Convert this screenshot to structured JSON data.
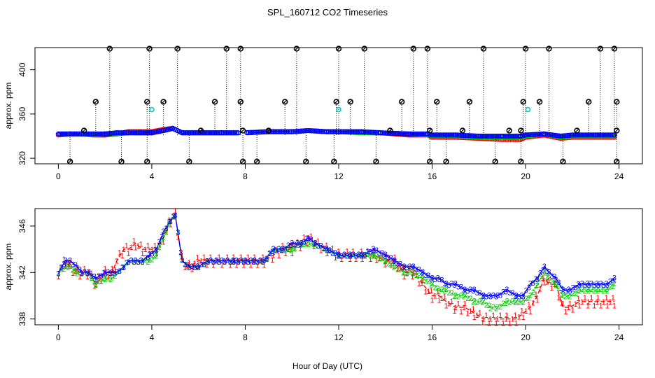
{
  "title": "SPL_160712  CO2 Timeseries",
  "xlabel": "Hour of Day (UTC)",
  "colors": {
    "series1": "#ff0000",
    "series2": "#00cd00",
    "series3": "#0000ff",
    "outlier": "#000000",
    "mean_outlier": "#00cccc"
  },
  "chart_data": [
    {
      "type": "scatter",
      "panel": "top",
      "ylabel": "approx. ppm",
      "xlim": [
        -1,
        25
      ],
      "ylim": [
        315,
        420
      ],
      "xticks": [
        0,
        4,
        8,
        12,
        16,
        20,
        24
      ],
      "yticks": [
        320,
        360,
        400
      ],
      "grid": false,
      "base_series": [
        {
          "name": "1",
          "x": [
            0,
            0.5,
            1,
            1.5,
            2,
            2.5,
            3,
            3.5,
            4,
            4.5,
            4.9,
            5.3,
            6,
            7,
            8,
            9,
            10,
            10.7,
            11.5,
            12,
            13,
            13.8,
            15,
            15.8,
            16,
            17,
            18,
            19,
            19.8,
            20,
            20.8,
            21.5,
            22,
            23,
            23.8
          ],
          "y": [
            341,
            342,
            342,
            341,
            341,
            342,
            344,
            344,
            344,
            346,
            347,
            343,
            343,
            343,
            343,
            344,
            344,
            345,
            344,
            344,
            343,
            343,
            341,
            341,
            339,
            339,
            338,
            337,
            337,
            339,
            341,
            338,
            339,
            339,
            339
          ]
        },
        {
          "name": "2",
          "x": [
            0,
            0.5,
            1,
            1.5,
            2,
            2.5,
            3,
            3.5,
            4,
            4.5,
            4.9,
            5.3,
            6,
            7,
            8,
            9,
            10,
            10.7,
            11.5,
            12,
            13,
            13.8,
            15,
            15.8,
            16,
            17,
            18,
            19,
            19.8,
            20,
            20.8,
            21.5,
            22,
            23,
            23.8
          ],
          "y": [
            342,
            342,
            342,
            341,
            342,
            342,
            343,
            343,
            343,
            345,
            347,
            343,
            343,
            343,
            343,
            344,
            344,
            345,
            344,
            344,
            343,
            343,
            342,
            341,
            340,
            340,
            339,
            339,
            339,
            340,
            342,
            339,
            340,
            340,
            340
          ]
        },
        {
          "name": "3",
          "x": [
            0,
            0.5,
            1,
            1.5,
            2,
            2.5,
            3,
            3.5,
            4,
            4.5,
            4.9,
            5.3,
            6,
            7,
            8,
            9,
            10,
            10.7,
            11.5,
            12,
            13,
            13.8,
            15,
            15.8,
            16,
            17,
            18,
            19,
            19.8,
            20,
            20.8,
            21.5,
            22,
            23,
            23.8
          ],
          "y": [
            342,
            342,
            342,
            342,
            342,
            343,
            343,
            343,
            343,
            345,
            347,
            343,
            343,
            343,
            343,
            344,
            344,
            345,
            344,
            344,
            344,
            343,
            342,
            342,
            341,
            341,
            340,
            340,
            340,
            341,
            342,
            340,
            341,
            341,
            341
          ]
        }
      ],
      "outliers_high": {
        "x": [
          2.2,
          3.9,
          5.1,
          7.2,
          7.8,
          10.2,
          12.0,
          13.1,
          15.2,
          15.8,
          18.2,
          20.0,
          21.0,
          23.2,
          23.8
        ],
        "y": [
          419,
          419,
          419,
          419,
          419,
          419,
          419,
          419,
          419,
          419,
          419,
          419,
          419,
          419,
          419
        ]
      },
      "outliers_mid": {
        "x": [
          1.6,
          3.8,
          4.5,
          6.7,
          7.8,
          9.7,
          11.9,
          12.5,
          14.7,
          16.2,
          17.6,
          19.9,
          20.6,
          22.7,
          23.9
        ],
        "y": [
          371,
          371,
          371,
          371,
          371,
          371,
          371,
          371,
          371,
          371,
          371,
          371,
          371,
          371,
          371
        ]
      },
      "outliers_low": {
        "x": [
          0.5,
          2.7,
          3.8,
          5.6,
          7.9,
          8.5,
          10.6,
          11.8,
          13.6,
          15.9,
          16.6,
          18.7,
          19.8,
          21.6,
          23.9
        ],
        "y": [
          317,
          317,
          317,
          317,
          317,
          317,
          317,
          317,
          317,
          317,
          317,
          317,
          317,
          317,
          317
        ]
      },
      "outliers_small": {
        "x": [
          1.1,
          6.1,
          7.9,
          9.0,
          14.2,
          15.9,
          17.3,
          19.3,
          19.8,
          22.2,
          23.9
        ],
        "y": [
          345,
          345,
          345,
          345,
          345,
          345,
          345,
          345,
          345,
          345,
          345
        ]
      },
      "mean_outliers": {
        "x": [
          4.0,
          12.0,
          20.1
        ],
        "y": [
          364,
          364,
          364
        ]
      }
    },
    {
      "type": "line",
      "panel": "bottom",
      "ylabel": "approx. ppm",
      "xlim": [
        -1,
        25
      ],
      "ylim": [
        337.5,
        347.5
      ],
      "xticks": [
        0,
        4,
        8,
        12,
        16,
        20,
        24
      ],
      "yticks": [
        338,
        342,
        346
      ],
      "grid": false,
      "marker_labels": [
        "1",
        "2",
        "3"
      ],
      "series": [
        {
          "name": "1",
          "x": [
            0,
            0.3,
            0.5,
            0.8,
            1,
            1.3,
            1.6,
            2,
            2.3,
            2.5,
            2.8,
            3,
            3.3,
            3.6,
            3.9,
            4.2,
            4.5,
            4.8,
            5,
            5.3,
            5.6,
            6,
            6.4,
            7,
            7.5,
            7.7,
            8,
            8.4,
            8.8,
            9.2,
            9.6,
            10,
            10.4,
            10.7,
            11,
            11.5,
            12,
            12.5,
            13,
            13.5,
            14,
            14.4,
            14.8,
            15.2,
            15.6,
            16,
            16.3,
            16.6,
            17,
            17.4,
            17.8,
            18.2,
            18.5,
            18.8,
            19.2,
            19.6,
            19.9,
            20.2,
            20.5,
            20.8,
            21,
            21.3,
            21.6,
            21.9,
            22.3,
            22.7,
            23.1,
            23.5,
            23.8
          ],
          "y": [
            342,
            343,
            342.5,
            342,
            342,
            342,
            341,
            342,
            342,
            343,
            344,
            344,
            344.5,
            344,
            344,
            344,
            345,
            346.5,
            347,
            343,
            342.5,
            343,
            343,
            343,
            343,
            343,
            343,
            343,
            343,
            343.5,
            344,
            344,
            344.5,
            345,
            344.5,
            344,
            343.5,
            343.5,
            343.5,
            343.5,
            343,
            343,
            342,
            342,
            341,
            340,
            340,
            339.5,
            339,
            339,
            338.5,
            338,
            338,
            338,
            338,
            338,
            338.5,
            339,
            340,
            341.5,
            341,
            341,
            339,
            339,
            339.5,
            339.5,
            339.5,
            339.5,
            339.5
          ]
        },
        {
          "name": "2",
          "x": [
            0,
            0.3,
            0.5,
            0.8,
            1,
            1.3,
            1.6,
            2,
            2.3,
            2.5,
            2.8,
            3,
            3.3,
            3.6,
            3.9,
            4.2,
            4.5,
            4.8,
            5,
            5.3,
            5.6,
            6,
            6.4,
            7,
            7.5,
            7.7,
            8,
            8.4,
            8.8,
            9.2,
            9.6,
            10,
            10.4,
            10.7,
            11,
            11.5,
            12,
            12.5,
            13,
            13.5,
            14,
            14.4,
            14.8,
            15.2,
            15.6,
            16,
            16.3,
            16.6,
            17,
            17.4,
            17.8,
            18.2,
            18.5,
            18.8,
            19.2,
            19.6,
            19.9,
            20.2,
            20.5,
            20.8,
            21,
            21.3,
            21.6,
            21.9,
            22.3,
            22.7,
            23.1,
            23.5,
            23.8
          ],
          "y": [
            342,
            342.5,
            342.5,
            342,
            342,
            342,
            341,
            341.5,
            341.5,
            342,
            342.5,
            343,
            343,
            343,
            343,
            343.5,
            345,
            346.5,
            347,
            343,
            342.5,
            342.5,
            343,
            343,
            343,
            343,
            343,
            343,
            343,
            344,
            344,
            344,
            344.5,
            344.5,
            344.5,
            344,
            343.5,
            343.5,
            343.5,
            343.5,
            343,
            342.5,
            342,
            342,
            341.5,
            341,
            340.5,
            340.5,
            340,
            340,
            339.5,
            339.5,
            339,
            339,
            339.5,
            339.5,
            339.5,
            340,
            341,
            342,
            341.5,
            341,
            340,
            340,
            340.5,
            340.5,
            340.5,
            340.5,
            341
          ]
        },
        {
          "name": "3",
          "x": [
            0,
            0.3,
            0.5,
            0.8,
            1,
            1.3,
            1.6,
            2,
            2.3,
            2.5,
            2.8,
            3,
            3.3,
            3.6,
            3.9,
            4.2,
            4.5,
            4.8,
            5,
            5.3,
            5.6,
            6,
            6.4,
            7,
            7.5,
            7.7,
            8,
            8.4,
            8.8,
            9.2,
            9.6,
            10,
            10.4,
            10.7,
            11,
            11.5,
            12,
            12.5,
            13,
            13.5,
            14,
            14.4,
            14.8,
            15.2,
            15.6,
            16,
            16.3,
            16.6,
            17,
            17.4,
            17.8,
            18.2,
            18.5,
            18.8,
            19.2,
            19.6,
            19.9,
            20.2,
            20.5,
            20.8,
            21,
            21.3,
            21.6,
            21.9,
            22.3,
            22.7,
            23.1,
            23.5,
            23.8
          ],
          "y": [
            342,
            343,
            343,
            342.5,
            342,
            342,
            341.5,
            342,
            342,
            342,
            342.5,
            343,
            343,
            343,
            343.5,
            344,
            345.5,
            346.5,
            347,
            343,
            342.5,
            342.5,
            343,
            343,
            343,
            343,
            343,
            343,
            343,
            344,
            344,
            344.5,
            344.5,
            345,
            344.5,
            344,
            343.5,
            343.5,
            343.5,
            344,
            343.5,
            343,
            342.5,
            342.5,
            342,
            341.5,
            341.5,
            341,
            341,
            340.5,
            340.5,
            340,
            340,
            340,
            340.5,
            340,
            340,
            341,
            341.5,
            342.5,
            342,
            341.5,
            340.5,
            340.5,
            341,
            341,
            341,
            341,
            341.5
          ]
        }
      ]
    }
  ]
}
